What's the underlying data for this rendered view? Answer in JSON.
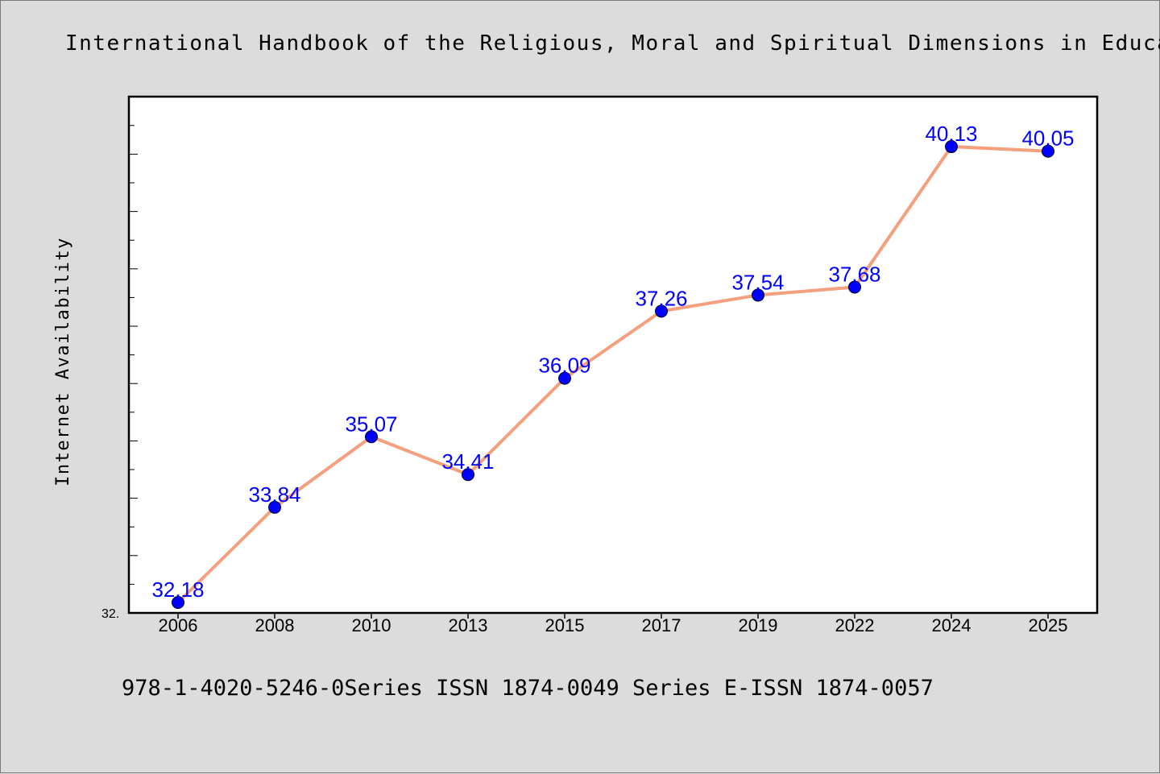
{
  "chart_data": {
    "type": "line",
    "title": "International Handbook of the Religious, Moral and Spiritual Dimensions in Educa",
    "ylabel": "Internet Availability",
    "xlabel": "",
    "categories": [
      "2006",
      "2008",
      "2010",
      "2013",
      "2015",
      "2017",
      "2019",
      "2022",
      "2024",
      "2025"
    ],
    "series": [
      {
        "values": [
          32.18,
          33.84,
          35.07,
          34.41,
          36.09,
          37.26,
          37.54,
          37.68,
          40.13,
          40.05
        ]
      }
    ],
    "data_labels": [
      "32.18",
      "33.84",
      "35.07",
      "34.41",
      "36.09",
      "37.26",
      "37.54",
      "37.68",
      "40.13",
      "40.05"
    ],
    "y_tick_label": "32.",
    "ylim": [
      32.0,
      41.0
    ],
    "grid": false,
    "line_color": "#f4a07e",
    "marker_color": "#0000ff",
    "label_color": "#0000ff",
    "plot_background": "#ffffff",
    "page_background": "#dcdcdc"
  },
  "footer": {
    "text": "978-1-4020-5246-0Series ISSN 1874-0049 Series E-ISSN 1874-0057"
  }
}
